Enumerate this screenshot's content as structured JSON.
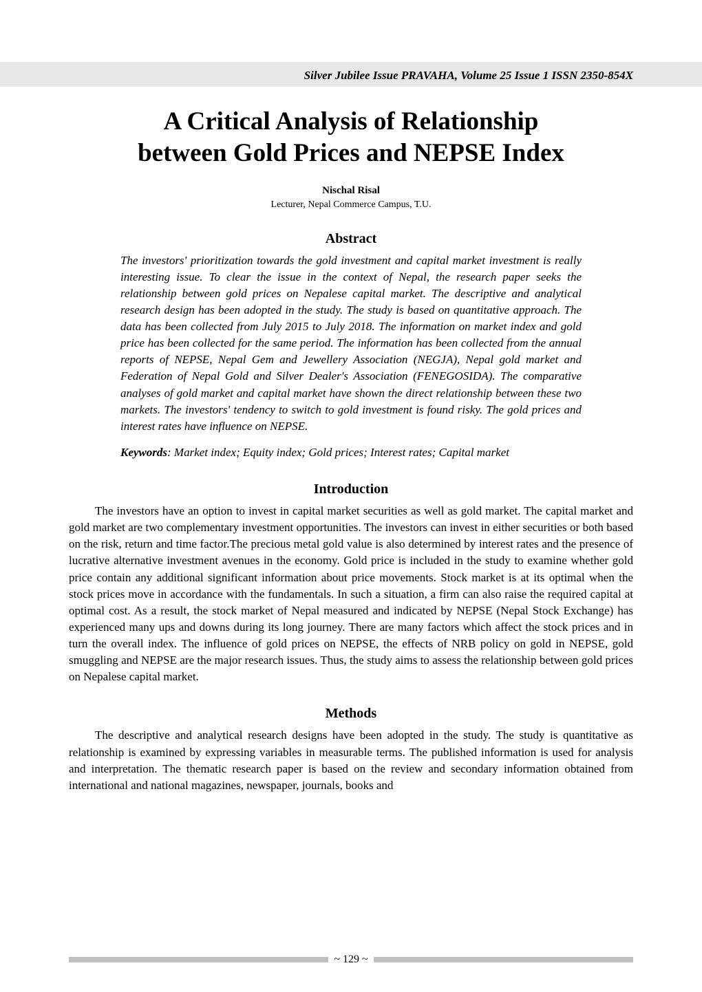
{
  "journal_header": "Silver Jubilee Issue PRAVAHA, Volume 25 Issue 1 ISSN 2350-854X",
  "title_line1": "A Critical Analysis of Relationship",
  "title_line2": "between Gold Prices and NEPSE Index",
  "author": "Nischal Risal",
  "affiliation": "Lecturer, Nepal Commerce Campus, T.U.",
  "sections": {
    "abstract_heading": "Abstract",
    "abstract_text": "The investors' prioritization towards the gold investment and capital market investment is really interesting issue. To clear the issue in the context of Nepal, the research paper seeks the relationship between gold prices on Nepalese capital market. The descriptive and analytical research design has been adopted in the study. The study is based on quantitative approach. The data has been collected from July 2015 to July 2018. The information on market index and gold price has been collected for the same period. The information has been collected from the annual reports of NEPSE, Nepal Gem and Jewellery Association (NEGJA), Nepal gold market and Federation of Nepal Gold and Silver Dealer's Association (FENEGOSIDA). The comparative analyses of gold market and capital market have shown the direct relationship between these two markets. The investors' tendency to switch to gold investment is found risky. The gold prices and interest rates have influence on NEPSE.",
    "keywords_label": "Keywords",
    "keywords_text": ": Market index; Equity index; Gold prices; Interest rates; Capital market",
    "introduction_heading": "Introduction",
    "introduction_text": "The investors have an option to invest in capital market securities as well as gold market. The capital market and gold market are two complementary investment opportunities. The investors can invest in either securities or both based on the risk, return and time factor.The precious metal gold value is also determined by interest rates and the presence of lucrative alternative investment avenues in the economy. Gold price is included in the study to examine whether gold price contain any additional significant information about price movements. Stock market is at its optimal when the stock prices move in accordance with the fundamentals. In such a situation, a firm can also raise the required capital at optimal cost. As a result, the stock market of Nepal measured and indicated by NEPSE (Nepal Stock Exchange) has experienced many ups and downs during its long journey. There are many factors which affect the stock prices and in turn the overall index. The influence of gold prices on NEPSE, the effects of NRB policy on gold in NEPSE, gold smuggling and NEPSE are the major research issues. Thus, the study aims to assess the relationship between gold prices on Nepalese capital market.",
    "methods_heading": "Methods",
    "methods_text": "The descriptive and analytical research designs have been adopted in the study. The study is quantitative as relationship is examined by expressing variables in measurable terms. The published information is used for analysis and interpretation. The thematic research paper is based on the review and secondary information obtained from international and national magazines, newspaper, journals, books and"
  },
  "page_number": "~ 129 ~",
  "colors": {
    "header_band": "#e8e8e8",
    "footer_bar": "#bfbfbf",
    "text": "#000000",
    "background": "#ffffff"
  },
  "typography": {
    "title_fontsize": 37,
    "section_heading_fontsize": 20,
    "body_fontsize": 17,
    "author_fontsize": 15,
    "affiliation_fontsize": 14,
    "font_family": "Times New Roman"
  }
}
